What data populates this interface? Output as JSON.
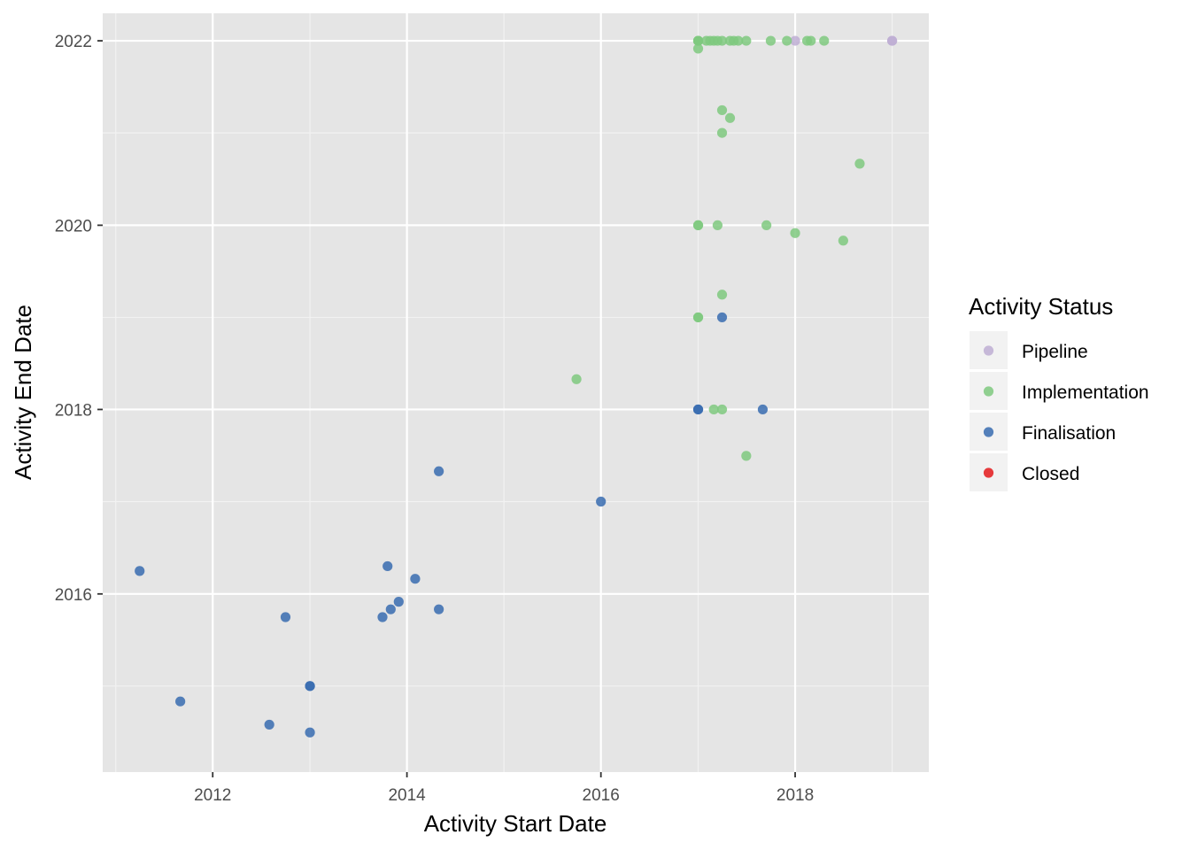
{
  "chart_data": {
    "type": "scatter",
    "xlabel": "Activity Start Date",
    "ylabel": "Activity End Date",
    "x_ticks": [
      "2012",
      "2014",
      "2016",
      "2018"
    ],
    "y_ticks": [
      "2016",
      "2018",
      "2020",
      "2022"
    ],
    "xlim": [
      "2010-11-13",
      "2019-05-19"
    ],
    "ylim": [
      "2014-01-25",
      "2022-04-20"
    ],
    "grid": true,
    "legend": {
      "title": "Activity Status",
      "placement": "right",
      "entries": [
        {
          "label": "Pipeline",
          "color": "#beaed4"
        },
        {
          "label": "Implementation",
          "color": "#7fc97f"
        },
        {
          "label": "Finalisation",
          "color": "#386cb0"
        },
        {
          "label": "Closed",
          "color": "#e41a1c"
        }
      ]
    },
    "series": [
      {
        "name": "Pipeline",
        "color": "#beaed4",
        "points": [
          {
            "x": "2018-01-01",
            "y": "2022-01-01"
          },
          {
            "x": "2019-01-01",
            "y": "2022-01-01"
          },
          {
            "x": "2019-01-01",
            "y": "2022-01-01"
          }
        ]
      },
      {
        "name": "Implementation",
        "color": "#7fc97f",
        "points": [
          {
            "x": "2017-01-01",
            "y": "2022-01-01"
          },
          {
            "x": "2017-01-01",
            "y": "2022-01-01"
          },
          {
            "x": "2017-01-01",
            "y": "2022-01-01"
          },
          {
            "x": "2017-01-01",
            "y": "2021-12-01"
          },
          {
            "x": "2017-02-01",
            "y": "2022-01-01"
          },
          {
            "x": "2017-02-15",
            "y": "2022-01-01"
          },
          {
            "x": "2017-03-01",
            "y": "2022-01-01"
          },
          {
            "x": "2017-03-15",
            "y": "2022-01-01"
          },
          {
            "x": "2017-04-01",
            "y": "2022-01-01"
          },
          {
            "x": "2017-05-01",
            "y": "2022-01-01"
          },
          {
            "x": "2017-05-15",
            "y": "2022-01-01"
          },
          {
            "x": "2017-06-01",
            "y": "2022-01-01"
          },
          {
            "x": "2017-07-01",
            "y": "2022-01-01"
          },
          {
            "x": "2017-10-01",
            "y": "2022-01-01"
          },
          {
            "x": "2017-12-01",
            "y": "2022-01-01"
          },
          {
            "x": "2018-02-15",
            "y": "2022-01-01"
          },
          {
            "x": "2018-03-01",
            "y": "2022-01-01"
          },
          {
            "x": "2018-04-20",
            "y": "2022-01-01"
          },
          {
            "x": "2017-04-01",
            "y": "2021-04-01"
          },
          {
            "x": "2017-05-01",
            "y": "2021-03-01"
          },
          {
            "x": "2017-04-01",
            "y": "2021-01-01"
          },
          {
            "x": "2018-09-01",
            "y": "2020-09-01"
          },
          {
            "x": "2017-01-01",
            "y": "2020-01-01"
          },
          {
            "x": "2017-01-01",
            "y": "2020-01-01"
          },
          {
            "x": "2017-03-15",
            "y": "2020-01-01"
          },
          {
            "x": "2017-09-15",
            "y": "2020-01-01"
          },
          {
            "x": "2018-01-01",
            "y": "2019-12-01"
          },
          {
            "x": "2018-07-01",
            "y": "2019-11-01"
          },
          {
            "x": "2017-04-01",
            "y": "2019-04-01"
          },
          {
            "x": "2017-01-01",
            "y": "2019-01-01"
          },
          {
            "x": "2017-01-01",
            "y": "2019-01-01"
          },
          {
            "x": "2015-10-01",
            "y": "2018-05-01"
          },
          {
            "x": "2017-03-01",
            "y": "2018-01-01"
          },
          {
            "x": "2017-04-01",
            "y": "2018-01-01"
          },
          {
            "x": "2017-07-01",
            "y": "2017-07-01"
          }
        ]
      },
      {
        "name": "Finalisation",
        "color": "#386cb0",
        "points": [
          {
            "x": "2017-04-01",
            "y": "2019-01-01"
          },
          {
            "x": "2017-01-01",
            "y": "2018-01-01"
          },
          {
            "x": "2017-01-01",
            "y": "2018-01-01"
          },
          {
            "x": "2017-09-01",
            "y": "2018-01-01"
          },
          {
            "x": "2014-05-01",
            "y": "2017-05-01"
          },
          {
            "x": "2016-01-01",
            "y": "2017-01-01"
          },
          {
            "x": "2011-04-01",
            "y": "2016-04-01"
          },
          {
            "x": "2013-10-20",
            "y": "2016-04-20"
          },
          {
            "x": "2014-02-01",
            "y": "2016-03-01"
          },
          {
            "x": "2013-12-01",
            "y": "2015-12-01"
          },
          {
            "x": "2013-11-01",
            "y": "2015-11-01"
          },
          {
            "x": "2014-05-01",
            "y": "2015-11-01"
          },
          {
            "x": "2012-10-01",
            "y": "2015-10-01"
          },
          {
            "x": "2013-10-01",
            "y": "2015-10-01"
          },
          {
            "x": "2013-01-01",
            "y": "2015-01-01"
          },
          {
            "x": "2013-01-01",
            "y": "2015-01-01"
          },
          {
            "x": "2011-09-01",
            "y": "2014-11-01"
          },
          {
            "x": "2012-08-01",
            "y": "2014-08-01"
          },
          {
            "x": "2013-01-01",
            "y": "2014-07-01"
          }
        ]
      },
      {
        "name": "Closed",
        "color": "#e41a1c",
        "points": []
      }
    ]
  }
}
